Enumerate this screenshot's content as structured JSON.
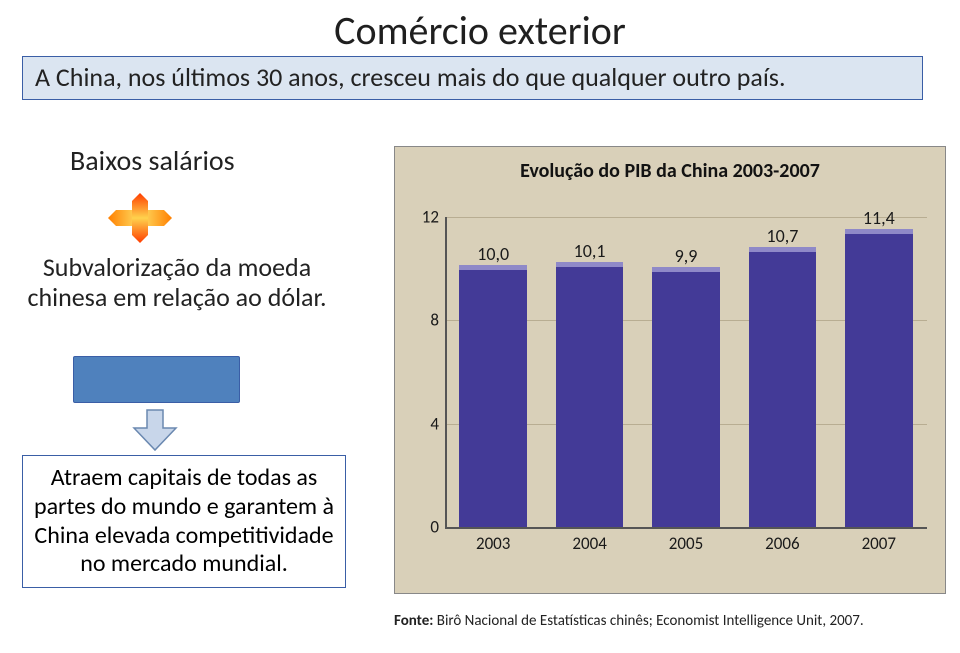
{
  "title": "Comércio exterior",
  "main_box": "A China, nos últimos 30 anos, cresceu mais do que qualquer outro país.",
  "baixos": "Baixos salários",
  "subval": "Subvalorização da moeda chinesa em relação ao dólar.",
  "attract": "Atraem capitais de todas as partes do mundo e garantem à China elevada competitividade no mercado mundial.",
  "source_label": "Fonte:",
  "source_rest": " Birô Nacional de Estatísticas chinês; Economist Intelligence Unit, 2007.",
  "pib_chart": {
    "title": "Evolução do PIB da China 2003-2007",
    "type": "bar",
    "categories": [
      "2003",
      "2004",
      "2005",
      "2006",
      "2007"
    ],
    "values": [
      10.0,
      10.1,
      9.9,
      10.7,
      11.4
    ],
    "value_labels": [
      "10,0",
      "10,1",
      "9,9",
      "10,7",
      "11,4"
    ],
    "bar_color": "#433a97",
    "bar_top_color": "#8f89c8",
    "background_color": "#d9d0b9",
    "grid_color": "#b8ad92",
    "ylim": [
      0,
      12
    ],
    "ytick_step": 4,
    "yticks": [
      0,
      4,
      8,
      12
    ],
    "bar_width": 0.7,
    "title_fontsize": 20,
    "label_fontsize": 17
  },
  "shapes": {
    "plus_fill_h": "#ffc000",
    "plus_fill_v": "#ff7f27",
    "arrow_fill": "#b0c4de",
    "arrow_border": "#6a88b0",
    "blue_rect_fill": "#4f81bd"
  }
}
